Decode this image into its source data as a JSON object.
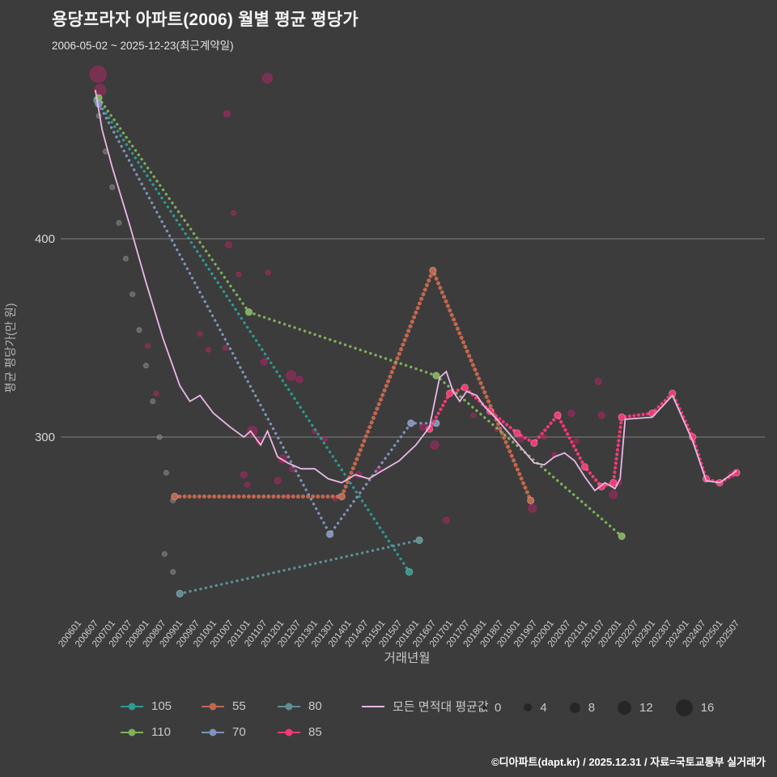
{
  "header": {
    "title": "용당프라자 아파트(2006) 월별 평균 평당가",
    "subtitle": "2006-05-02 ~ 2025-12-23(최근계약일)"
  },
  "footer": {
    "credit": "©디아파트(dapt.kr) / 2025.12.31 / 자료=국토교통부 실거래가"
  },
  "chart_data": {
    "type": "scatter",
    "title": "용당프라자 아파트(2006) 월별 평균 평당가",
    "subtitle": "2006-05-02 ~ 2025-12-23(최근계약일)",
    "xlabel": "거래년월",
    "ylabel": "평균 평당가(만 원)",
    "xlim": [
      2006.0,
      2025.5
    ],
    "ylim": [
      210,
      490
    ],
    "yticks": [
      300,
      400
    ],
    "grid": "horizontal-only",
    "legend_position": "bottom",
    "xtick_labels": [
      "200601",
      "200607",
      "200701",
      "200707",
      "200801",
      "200807",
      "200901",
      "200907",
      "201001",
      "201007",
      "201101",
      "201107",
      "201201",
      "201207",
      "201301",
      "201307",
      "201401",
      "201407",
      "201501",
      "201507",
      "201601",
      "201607",
      "201701",
      "201707",
      "201801",
      "201807",
      "201901",
      "201907",
      "202001",
      "202007",
      "202101",
      "202107",
      "202201",
      "202207",
      "202301",
      "202307",
      "202401",
      "202407",
      "202501",
      "202507"
    ],
    "legend": {
      "rows": [
        [
          "105",
          "55",
          "80",
          "모든 면적대 평균값"
        ],
        [
          "110",
          "70",
          "85"
        ]
      ]
    },
    "series": [
      {
        "name": "105",
        "color": "#2f9a94",
        "style": "dotted",
        "width": 3.4,
        "gap": 6.5,
        "points": [
          [
            2006.55,
            470
          ],
          [
            2015.8,
            232
          ]
        ]
      },
      {
        "name": "55",
        "color": "#c2674f",
        "style": "dotted",
        "width": 5,
        "gap": 6,
        "points": [
          [
            2008.85,
            270
          ],
          [
            2013.8,
            270
          ],
          [
            2016.5,
            384
          ],
          [
            2019.4,
            268
          ]
        ]
      },
      {
        "name": "80",
        "color": "#5e8f96",
        "style": "dotted",
        "width": 3.4,
        "gap": 6.5,
        "points": [
          [
            2009.0,
            221
          ],
          [
            2016.1,
            248
          ]
        ]
      },
      {
        "name": "110",
        "color": "#7fb05a",
        "style": "dotted",
        "width": 3.4,
        "gap": 6.5,
        "points": [
          [
            2006.6,
            471
          ],
          [
            2011.05,
            363
          ],
          [
            2016.6,
            331
          ],
          [
            2022.1,
            250
          ]
        ]
      },
      {
        "name": "70",
        "color": "#7e93bd",
        "style": "dotted",
        "width": 3.4,
        "gap": 6.5,
        "points": [
          [
            2006.6,
            468
          ],
          [
            2013.45,
            251
          ],
          [
            2015.85,
            307
          ],
          [
            2016.6,
            307
          ]
        ]
      },
      {
        "name": "85",
        "color": "#f23a75",
        "style": "dotted",
        "width": 4.2,
        "gap": 5.5,
        "points": [
          [
            2016.4,
            304
          ],
          [
            2017.0,
            322
          ],
          [
            2017.45,
            325
          ],
          [
            2018.2,
            313
          ],
          [
            2019.0,
            302
          ],
          [
            2019.5,
            297
          ],
          [
            2020.2,
            311
          ],
          [
            2021.0,
            285
          ],
          [
            2021.5,
            275
          ],
          [
            2021.85,
            277
          ],
          [
            2022.1,
            310
          ],
          [
            2023.0,
            312
          ],
          [
            2023.6,
            322
          ],
          [
            2024.2,
            300
          ],
          [
            2024.6,
            279
          ],
          [
            2025.0,
            277
          ],
          [
            2025.5,
            282
          ]
        ]
      },
      {
        "name": "모든 면적대 평균값",
        "color": "#eab8e8",
        "style": "solid",
        "width": 1.8,
        "points": [
          [
            2006.5,
            475
          ],
          [
            2006.7,
            455
          ],
          [
            2007.0,
            436
          ],
          [
            2007.5,
            408
          ],
          [
            2008.0,
            378
          ],
          [
            2008.5,
            350
          ],
          [
            2009.0,
            326
          ],
          [
            2009.3,
            318
          ],
          [
            2009.6,
            321
          ],
          [
            2010.0,
            312
          ],
          [
            2010.5,
            305
          ],
          [
            2010.9,
            300
          ],
          [
            2011.1,
            303
          ],
          [
            2011.4,
            296
          ],
          [
            2011.6,
            303
          ],
          [
            2011.9,
            290
          ],
          [
            2012.2,
            287
          ],
          [
            2012.6,
            284
          ],
          [
            2013.0,
            284
          ],
          [
            2013.4,
            279
          ],
          [
            2013.8,
            277
          ],
          [
            2014.2,
            281
          ],
          [
            2014.6,
            279
          ],
          [
            2015.0,
            283
          ],
          [
            2015.5,
            288
          ],
          [
            2016.0,
            296
          ],
          [
            2016.4,
            305
          ],
          [
            2016.7,
            330
          ],
          [
            2016.9,
            333
          ],
          [
            2017.1,
            323
          ],
          [
            2017.3,
            318
          ],
          [
            2017.5,
            323
          ],
          [
            2017.8,
            321
          ],
          [
            2018.0,
            316
          ],
          [
            2018.4,
            309
          ],
          [
            2018.8,
            301
          ],
          [
            2019.2,
            293
          ],
          [
            2019.5,
            287
          ],
          [
            2019.8,
            286
          ],
          [
            2020.1,
            290
          ],
          [
            2020.4,
            292
          ],
          [
            2020.7,
            288
          ],
          [
            2021.0,
            280
          ],
          [
            2021.3,
            273
          ],
          [
            2021.6,
            277
          ],
          [
            2021.9,
            274
          ],
          [
            2022.05,
            279
          ],
          [
            2022.2,
            309
          ],
          [
            2023.0,
            310
          ],
          [
            2023.6,
            321
          ],
          [
            2024.2,
            298
          ],
          [
            2024.6,
            278
          ],
          [
            2025.0,
            277
          ],
          [
            2025.5,
            283
          ]
        ]
      }
    ],
    "scatter": {
      "name": "individual-transactions",
      "color": "#c2246b",
      "points": [
        [
          2006.58,
          483,
          10
        ],
        [
          2006.64,
          475,
          7
        ],
        [
          2011.6,
          481,
          6
        ],
        [
          2010.4,
          463,
          4
        ],
        [
          2010.6,
          413,
          3
        ],
        [
          2010.45,
          397,
          4
        ],
        [
          2010.75,
          382,
          3
        ],
        [
          2011.62,
          383,
          3
        ],
        [
          2009.6,
          352,
          3
        ],
        [
          2009.85,
          344,
          3
        ],
        [
          2010.35,
          345,
          3
        ],
        [
          2008.05,
          346,
          3
        ],
        [
          2008.3,
          322,
          3
        ],
        [
          2011.5,
          338,
          4
        ],
        [
          2012.3,
          331,
          6
        ],
        [
          2012.55,
          329,
          4
        ],
        [
          2011.15,
          303,
          6
        ],
        [
          2011.35,
          298,
          4
        ],
        [
          2012.05,
          289,
          5
        ],
        [
          2012.35,
          284,
          4
        ],
        [
          2010.9,
          281,
          4
        ],
        [
          2011.0,
          276,
          3
        ],
        [
          2011.9,
          278,
          4
        ],
        [
          2013.0,
          303,
          3
        ],
        [
          2013.3,
          299,
          3
        ],
        [
          2012.2,
          270,
          3
        ],
        [
          2013.6,
          269,
          3
        ],
        [
          2014.3,
          281,
          4
        ],
        [
          2014.9,
          284,
          3
        ],
        [
          2016.2,
          305,
          4
        ],
        [
          2016.55,
          296,
          5
        ],
        [
          2016.9,
          258,
          4
        ],
        [
          2017.7,
          311,
          3
        ],
        [
          2018.4,
          304,
          3
        ],
        [
          2019.1,
          299,
          4
        ],
        [
          2019.45,
          264,
          5
        ],
        [
          2019.8,
          300,
          3
        ],
        [
          2020.1,
          291,
          3
        ],
        [
          2020.6,
          312,
          4
        ],
        [
          2020.75,
          298,
          3
        ],
        [
          2021.4,
          328,
          4
        ],
        [
          2021.5,
          311,
          4
        ],
        [
          2021.85,
          271,
          5
        ],
        [
          2022.0,
          277,
          4
        ],
        [
          2025.35,
          281,
          4
        ]
      ]
    },
    "scatter_muted": {
      "name": "muted-transactions",
      "color": "#9a9a9a",
      "points": [
        [
          2006.6,
          462,
          3
        ],
        [
          2006.8,
          444,
          3
        ],
        [
          2007.0,
          426,
          3
        ],
        [
          2007.2,
          408,
          3
        ],
        [
          2007.4,
          390,
          3
        ],
        [
          2007.6,
          372,
          3
        ],
        [
          2007.8,
          354,
          3
        ],
        [
          2008.0,
          336,
          3
        ],
        [
          2008.2,
          318,
          3
        ],
        [
          2008.4,
          300,
          3
        ],
        [
          2008.6,
          282,
          3
        ],
        [
          2008.8,
          268,
          3
        ],
        [
          2008.55,
          241,
          3
        ],
        [
          2008.8,
          232,
          3
        ]
      ]
    },
    "size_legend": {
      "values": [
        0,
        4,
        8,
        12,
        16
      ],
      "radii": [
        2.5,
        5,
        6.5,
        8.5,
        10.5
      ],
      "color": "#262626"
    }
  }
}
